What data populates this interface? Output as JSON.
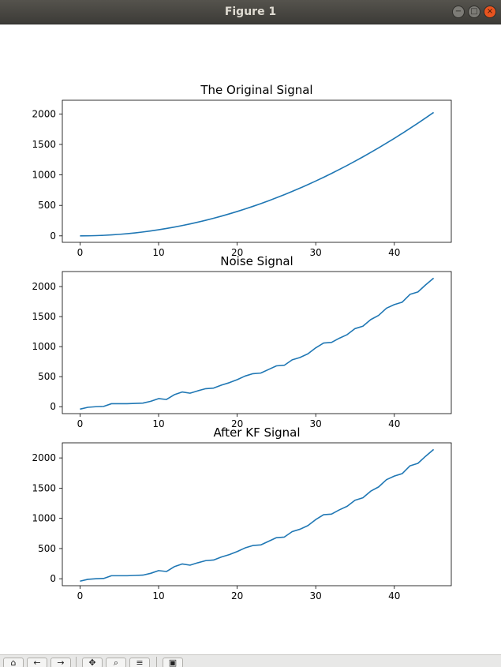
{
  "window": {
    "title": "Figure 1"
  },
  "chart_data": [
    {
      "type": "line",
      "title": "The Original Signal",
      "xlabel": "",
      "ylabel": "",
      "xlim": [
        -2.25,
        47.25
      ],
      "ylim": [
        -106,
        2225
      ],
      "xticks": [
        0,
        10,
        20,
        30,
        40
      ],
      "yticks": [
        0,
        500,
        1000,
        1500,
        2000
      ],
      "color": "#1f77b4",
      "series": [
        {
          "x": [
            0,
            1,
            2,
            3,
            4,
            5,
            6,
            7,
            8,
            9,
            10,
            11,
            12,
            13,
            14,
            15,
            16,
            17,
            18,
            19,
            20,
            21,
            22,
            23,
            24,
            25,
            26,
            27,
            28,
            29,
            30,
            31,
            32,
            33,
            34,
            35,
            36,
            37,
            38,
            39,
            40,
            41,
            42,
            43,
            44,
            45
          ],
          "values": [
            0,
            1,
            4,
            9,
            16,
            25,
            36,
            49,
            64,
            81,
            100,
            121,
            144,
            169,
            196,
            225,
            256,
            289,
            324,
            361,
            400,
            441,
            484,
            529,
            576,
            625,
            676,
            729,
            784,
            841,
            900,
            961,
            1024,
            1089,
            1156,
            1225,
            1296,
            1369,
            1444,
            1521,
            1600,
            1681,
            1764,
            1849,
            1936,
            2025
          ]
        }
      ]
    },
    {
      "type": "line",
      "title": "Noise Signal",
      "xlabel": "",
      "ylabel": "",
      "xlim": [
        -2.25,
        47.25
      ],
      "ylim": [
        -115,
        2250
      ],
      "xticks": [
        0,
        10,
        20,
        30,
        40
      ],
      "yticks": [
        0,
        500,
        1000,
        1500,
        2000
      ],
      "color": "#1f77b4",
      "series": [
        {
          "x": [
            0,
            1,
            2,
            3,
            4,
            5,
            6,
            7,
            8,
            9,
            10,
            11,
            12,
            13,
            14,
            15,
            16,
            17,
            18,
            19,
            20,
            21,
            22,
            23,
            24,
            25,
            26,
            27,
            28,
            29,
            30,
            31,
            32,
            33,
            34,
            35,
            36,
            37,
            38,
            39,
            40,
            41,
            42,
            43,
            44,
            45
          ],
          "values": [
            -40,
            -10,
            0,
            5,
            50,
            50,
            50,
            55,
            60,
            90,
            135,
            120,
            200,
            245,
            225,
            265,
            300,
            310,
            360,
            400,
            450,
            510,
            550,
            560,
            620,
            680,
            690,
            780,
            820,
            880,
            980,
            1060,
            1070,
            1140,
            1200,
            1300,
            1340,
            1450,
            1520,
            1640,
            1700,
            1740,
            1870,
            1910,
            2030,
            2140
          ]
        }
      ]
    },
    {
      "type": "line",
      "title": "After KF Signal",
      "xlabel": "",
      "ylabel": "",
      "xlim": [
        -2.25,
        47.25
      ],
      "ylim": [
        -115,
        2250
      ],
      "xticks": [
        0,
        10,
        20,
        30,
        40
      ],
      "yticks": [
        0,
        500,
        1000,
        1500,
        2000
      ],
      "color": "#1f77b4",
      "series": [
        {
          "x": [
            0,
            1,
            2,
            3,
            4,
            5,
            6,
            7,
            8,
            9,
            10,
            11,
            12,
            13,
            14,
            15,
            16,
            17,
            18,
            19,
            20,
            21,
            22,
            23,
            24,
            25,
            26,
            27,
            28,
            29,
            30,
            31,
            32,
            33,
            34,
            35,
            36,
            37,
            38,
            39,
            40,
            41,
            42,
            43,
            44,
            45
          ],
          "values": [
            -40,
            -10,
            0,
            5,
            50,
            50,
            50,
            55,
            60,
            90,
            135,
            120,
            200,
            245,
            225,
            265,
            300,
            310,
            360,
            400,
            450,
            510,
            550,
            560,
            620,
            680,
            690,
            780,
            820,
            880,
            980,
            1060,
            1070,
            1140,
            1200,
            1300,
            1340,
            1450,
            1520,
            1640,
            1700,
            1740,
            1870,
            1910,
            2030,
            2140
          ]
        }
      ]
    }
  ],
  "toolbar": {
    "buttons": [
      "home-icon",
      "back-icon",
      "forward-icon",
      "pan-icon",
      "zoom-icon",
      "configure-icon",
      "save-icon"
    ]
  }
}
